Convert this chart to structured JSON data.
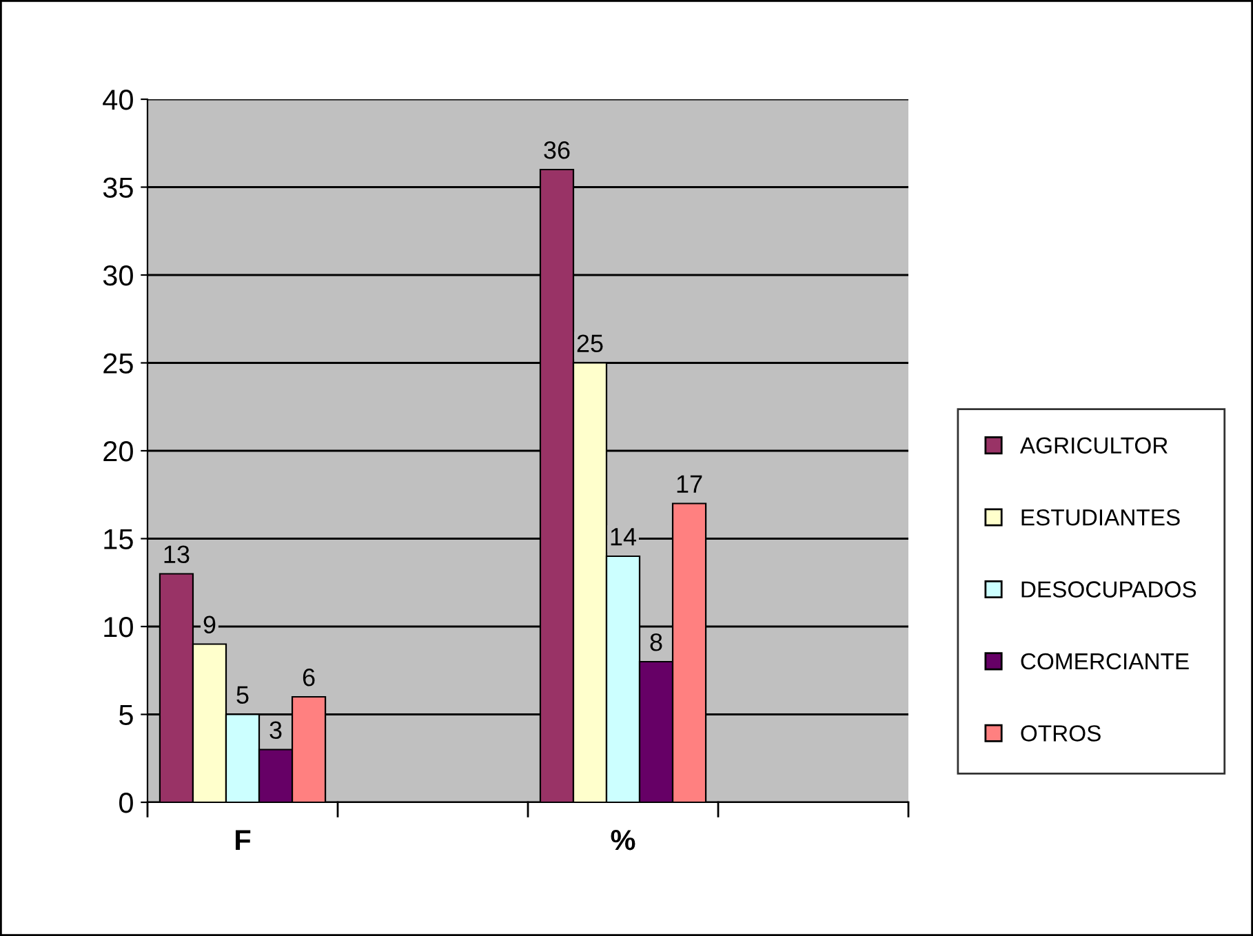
{
  "chart_data": {
    "type": "bar",
    "categories": [
      "F",
      null,
      "%",
      null
    ],
    "series": [
      {
        "name": "AGRICULTOR",
        "color": "#993366",
        "values": [
          13,
          null,
          36,
          null
        ]
      },
      {
        "name": "ESTUDIANTES",
        "color": "#ffffcc",
        "values": [
          9,
          null,
          25,
          null
        ]
      },
      {
        "name": "DESOCUPADOS",
        "color": "#ccffff",
        "values": [
          5,
          null,
          14,
          null
        ]
      },
      {
        "name": "COMERCIANTE",
        "color": "#660066",
        "values": [
          3,
          null,
          8,
          null
        ]
      },
      {
        "name": "OTROS",
        "color": "#ff8080",
        "values": [
          6,
          null,
          17,
          null
        ]
      }
    ],
    "ylim": [
      0,
      40
    ],
    "yticks": [
      0,
      5,
      10,
      15,
      20,
      25,
      30,
      35,
      40
    ],
    "grid": "y",
    "legend": "right",
    "data_labels": true
  }
}
